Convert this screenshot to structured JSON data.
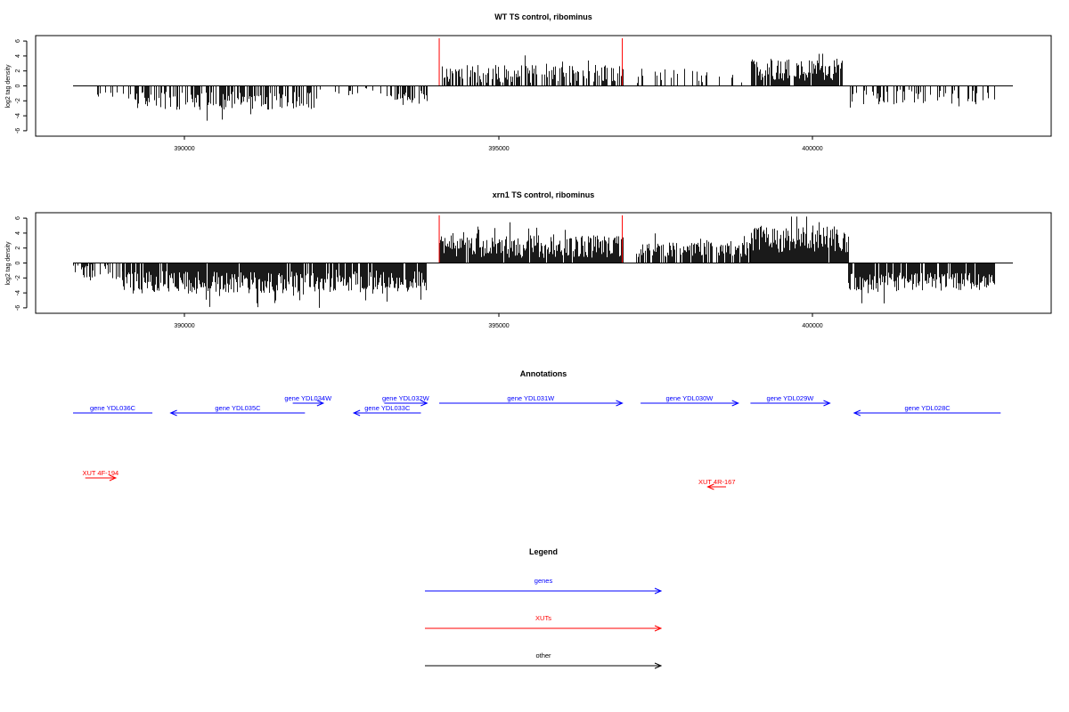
{
  "chart_data": [
    {
      "type": "bar",
      "title": "WT TS control, ribominus",
      "ylabel": "log2 tag density",
      "xlabel": "",
      "xlim": [
        388200,
        403600
      ],
      "ylim": [
        -6.5,
        6.5
      ],
      "x_ticks": [
        "390000",
        "395000",
        "400000"
      ],
      "y_ticks": [
        "6",
        "4",
        "2",
        "0",
        "-2",
        "-4",
        "-6"
      ],
      "grid": false,
      "markers": [
        394200,
        397200
      ],
      "segments": [
        {
          "from": 388500,
          "to": 389200,
          "mean": -1.0,
          "amp": 0.6,
          "density": 0.25
        },
        {
          "from": 389200,
          "to": 392200,
          "mean": -2.0,
          "amp": 1.2,
          "density": 0.55
        },
        {
          "from": 392200,
          "to": 393400,
          "mean": -0.8,
          "amp": 0.5,
          "density": 0.15
        },
        {
          "from": 393400,
          "to": 394000,
          "mean": -1.6,
          "amp": 1.0,
          "density": 0.45
        },
        {
          "from": 394200,
          "to": 397200,
          "mean": 1.6,
          "amp": 1.2,
          "density": 0.55
        },
        {
          "from": 397400,
          "to": 399300,
          "mean": 1.3,
          "amp": 1.0,
          "density": 0.25
        },
        {
          "from": 399300,
          "to": 400800,
          "mean": 2.2,
          "amp": 1.5,
          "density": 0.85
        },
        {
          "from": 400900,
          "to": 403300,
          "mean": -1.5,
          "amp": 1.0,
          "density": 0.3
        }
      ]
    },
    {
      "type": "bar",
      "title": "xrn1 TS control, ribominus",
      "ylabel": "log2 tag density",
      "xlabel": "",
      "xlim": [
        388200,
        403600
      ],
      "ylim": [
        -6.5,
        6.5
      ],
      "x_ticks": [
        "390000",
        "395000",
        "400000"
      ],
      "y_ticks": [
        "6",
        "4",
        "2",
        "0",
        "-2",
        "-4",
        "-6"
      ],
      "grid": false,
      "markers": [
        394200,
        397200
      ],
      "segments": [
        {
          "from": 388200,
          "to": 389000,
          "mean": -1.0,
          "amp": 1.2,
          "density": 0.5
        },
        {
          "from": 389000,
          "to": 392300,
          "mean": -2.6,
          "amp": 1.5,
          "density": 0.95
        },
        {
          "from": 392300,
          "to": 394000,
          "mean": -2.4,
          "amp": 1.5,
          "density": 0.9
        },
        {
          "from": 394200,
          "to": 397200,
          "mean": 2.2,
          "amp": 1.5,
          "density": 0.95
        },
        {
          "from": 397400,
          "to": 399300,
          "mean": 1.8,
          "amp": 1.0,
          "density": 0.7
        },
        {
          "from": 399300,
          "to": 400900,
          "mean": 3.2,
          "amp": 1.8,
          "density": 0.98
        },
        {
          "from": 400900,
          "to": 403300,
          "mean": -2.5,
          "amp": 1.2,
          "density": 0.9
        }
      ]
    }
  ],
  "annotations": {
    "title": "Annotations",
    "genes": [
      {
        "label": "gene YDL036C",
        "start": 388200,
        "end": 389500,
        "dir": "none",
        "row": 1
      },
      {
        "label": "gene YDL035C",
        "start": 389800,
        "end": 392000,
        "dir": "left",
        "row": 1
      },
      {
        "label": "gene YDL034W",
        "start": 391800,
        "end": 392300,
        "dir": "right",
        "row": 0
      },
      {
        "label": "gene YDL033C",
        "start": 392800,
        "end": 393900,
        "dir": "left",
        "row": 1
      },
      {
        "label": "gene YDL032W",
        "start": 393300,
        "end": 394000,
        "dir": "right",
        "row": 0
      },
      {
        "label": "gene YDL031W",
        "start": 394200,
        "end": 397200,
        "dir": "right",
        "row": 0
      },
      {
        "label": "gene YDL030W",
        "start": 397500,
        "end": 399100,
        "dir": "right",
        "row": 0
      },
      {
        "label": "gene YDL029W",
        "start": 399300,
        "end": 400600,
        "dir": "right",
        "row": 0
      },
      {
        "label": "gene YDL028C",
        "start": 401000,
        "end": 403400,
        "dir": "left",
        "row": 1
      }
    ],
    "xuts": [
      {
        "label": "XUT 4F-194",
        "start": 388400,
        "end": 388900,
        "dir": "right",
        "row": 0
      },
      {
        "label": "XUT 4R-167",
        "start": 398600,
        "end": 398900,
        "dir": "left",
        "row": 1
      }
    ]
  },
  "legend": {
    "title": "Legend",
    "items": [
      {
        "label": "genes",
        "color": "#0000ff"
      },
      {
        "label": "XUTs",
        "color": "#ff0000"
      },
      {
        "label": "other",
        "color": "#000000"
      }
    ]
  },
  "colors": {
    "gene": "#0000ff",
    "xut": "#ff0000",
    "bar": "#000000",
    "marker": "#ff0000"
  }
}
